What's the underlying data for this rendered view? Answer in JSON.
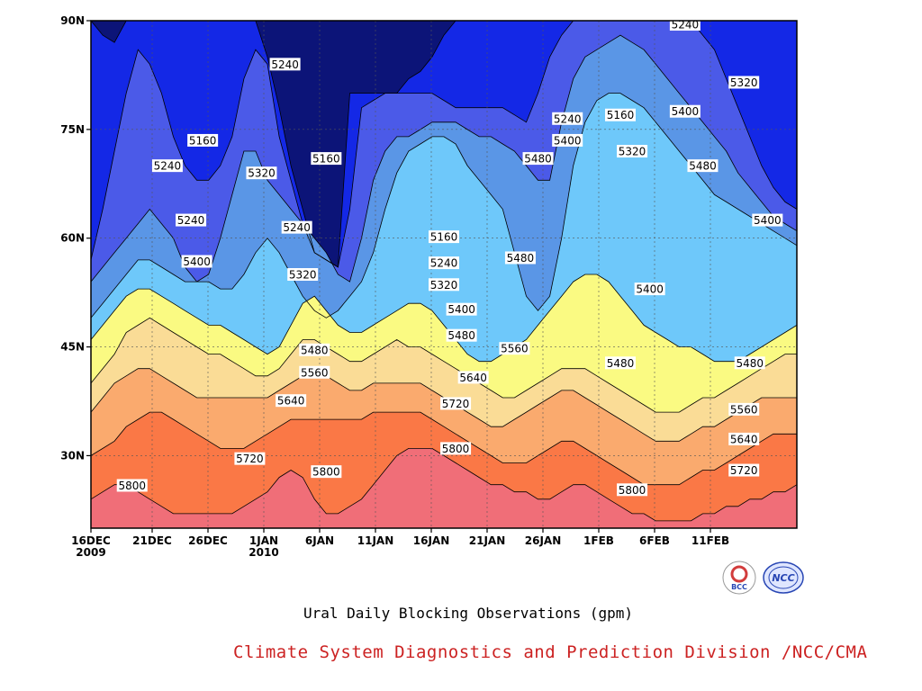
{
  "chart_data": {
    "type": "contour",
    "title": "",
    "caption": "Ural Daily Blocking Observations (gpm)",
    "credit": "Climate System Diagnostics and Prediction Division /NCC/CMA",
    "credit_color": "#cc2222",
    "ylim": [
      20,
      90
    ],
    "xlim_days": [
      0,
      60
    ],
    "grid": true,
    "y_ticks": [
      {
        "value": 30,
        "label": "30N"
      },
      {
        "value": 45,
        "label": "45N"
      },
      {
        "value": 60,
        "label": "60N"
      },
      {
        "value": 75,
        "label": "75N"
      },
      {
        "value": 90,
        "label": "90N"
      }
    ],
    "x_ticks": [
      {
        "label": "16DEC",
        "label2": "2009"
      },
      {
        "label": "21DEC",
        "label2": ""
      },
      {
        "label": "26DEC",
        "label2": ""
      },
      {
        "label": "1JAN",
        "label2": "2010"
      },
      {
        "label": "6JAN",
        "label2": ""
      },
      {
        "label": "11JAN",
        "label2": ""
      },
      {
        "label": "16JAN",
        "label2": ""
      },
      {
        "label": "21JAN",
        "label2": ""
      },
      {
        "label": "26JAN",
        "label2": ""
      },
      {
        "label": "1FEB",
        "label2": ""
      },
      {
        "label": "6FEB",
        "label2": ""
      },
      {
        "label": "11FEB",
        "label2": ""
      }
    ],
    "contour_levels": [
      5160,
      5240,
      5320,
      5400,
      5480,
      5560,
      5640,
      5720,
      5800
    ],
    "fill_colors": [
      "#0c1478",
      "#1428e6",
      "#4b5ae8",
      "#5a96e6",
      "#6ec8fa",
      "#fafa82",
      "#fadc96",
      "#faaa6e",
      "#fa7846",
      "#f06e78"
    ],
    "contour_boundaries": [
      {
        "level": 5160,
        "lat": [
          90,
          88,
          87,
          90,
          90,
          90,
          90,
          90,
          90,
          90,
          90,
          90,
          90,
          90,
          90,
          85,
          78,
          70,
          64,
          58,
          57,
          56,
          80,
          80,
          80,
          80,
          80,
          82,
          83,
          85,
          88,
          90,
          90,
          90,
          90,
          90,
          90,
          90,
          90,
          90,
          90,
          90,
          90,
          90,
          90,
          90,
          90,
          90,
          90,
          90,
          90,
          90,
          90,
          90,
          90,
          90,
          90,
          90,
          90,
          90,
          90
        ]
      },
      {
        "level": 5240,
        "lat": [
          57,
          64,
          72,
          80,
          86,
          84,
          80,
          74,
          70,
          68,
          68,
          70,
          74,
          82,
          86,
          84,
          74,
          68,
          62,
          58,
          57,
          56,
          64,
          78,
          79,
          80,
          80,
          80,
          80,
          80,
          79,
          78,
          78,
          78,
          78,
          78,
          77,
          76,
          80,
          85,
          88,
          90,
          90,
          90,
          90,
          90,
          90,
          90,
          90,
          90,
          90,
          90,
          88,
          86,
          82,
          78,
          74,
          70,
          67,
          65,
          64
        ]
      },
      {
        "level": 5320,
        "lat": [
          54,
          56,
          58,
          60,
          62,
          64,
          62,
          60,
          56,
          54,
          55,
          60,
          66,
          72,
          72,
          68,
          66,
          64,
          62,
          60,
          58,
          55,
          54,
          60,
          68,
          72,
          74,
          74,
          75,
          76,
          76,
          76,
          75,
          74,
          74,
          73,
          72,
          70,
          68,
          68,
          76,
          82,
          85,
          86,
          87,
          88,
          87,
          86,
          84,
          82,
          80,
          78,
          76,
          74,
          72,
          69,
          67,
          65,
          63,
          62,
          61
        ]
      },
      {
        "level": 5400,
        "lat": [
          49,
          51,
          53,
          55,
          57,
          57,
          56,
          55,
          54,
          54,
          54,
          53,
          53,
          55,
          58,
          60,
          58,
          55,
          52,
          50,
          49,
          50,
          52,
          54,
          58,
          64,
          69,
          72,
          73,
          74,
          74,
          73,
          70,
          68,
          66,
          64,
          58,
          52,
          50,
          52,
          60,
          70,
          76,
          79,
          80,
          80,
          79,
          78,
          76,
          74,
          72,
          70,
          68,
          66,
          65,
          64,
          63,
          62,
          61,
          60,
          59
        ]
      },
      {
        "level": 5480,
        "lat": [
          46,
          48,
          50,
          52,
          53,
          53,
          52,
          51,
          50,
          49,
          48,
          48,
          47,
          46,
          45,
          44,
          45,
          48,
          51,
          52,
          50,
          48,
          47,
          47,
          48,
          49,
          50,
          51,
          51,
          50,
          48,
          46,
          44,
          43,
          43,
          44,
          45,
          46,
          48,
          50,
          52,
          54,
          55,
          55,
          54,
          52,
          50,
          48,
          47,
          46,
          45,
          45,
          44,
          43,
          43,
          43,
          44,
          45,
          46,
          47,
          48
        ]
      },
      {
        "level": 5560,
        "lat": [
          40,
          42,
          44,
          47,
          48,
          49,
          48,
          47,
          46,
          45,
          44,
          44,
          43,
          42,
          41,
          41,
          42,
          44,
          46,
          46,
          45,
          44,
          43,
          43,
          44,
          45,
          46,
          45,
          45,
          44,
          43,
          42,
          41,
          40,
          39,
          38,
          38,
          39,
          40,
          41,
          42,
          42,
          42,
          41,
          40,
          39,
          38,
          37,
          36,
          36,
          36,
          37,
          38,
          38,
          39,
          40,
          41,
          42,
          43,
          44,
          44
        ]
      },
      {
        "level": 5640,
        "lat": [
          36,
          38,
          40,
          41,
          42,
          42,
          41,
          40,
          39,
          38,
          38,
          38,
          38,
          38,
          38,
          38,
          39,
          40,
          41,
          42,
          41,
          40,
          39,
          39,
          40,
          40,
          40,
          40,
          40,
          39,
          38,
          37,
          36,
          35,
          34,
          34,
          35,
          36,
          37,
          38,
          39,
          39,
          38,
          37,
          36,
          35,
          34,
          33,
          32,
          32,
          32,
          33,
          34,
          34,
          35,
          36,
          37,
          38,
          38,
          38,
          38
        ]
      },
      {
        "level": 5720,
        "lat": [
          30,
          31,
          32,
          34,
          35,
          36,
          36,
          35,
          34,
          33,
          32,
          31,
          31,
          31,
          32,
          33,
          34,
          35,
          35,
          35,
          35,
          35,
          35,
          35,
          36,
          36,
          36,
          36,
          36,
          35,
          34,
          33,
          32,
          31,
          30,
          29,
          29,
          29,
          30,
          31,
          32,
          32,
          31,
          30,
          29,
          28,
          27,
          26,
          26,
          26,
          26,
          27,
          28,
          28,
          29,
          30,
          31,
          32,
          33,
          33,
          33
        ]
      },
      {
        "level": 5800,
        "lat": [
          24,
          25,
          26,
          26,
          25,
          24,
          23,
          22,
          22,
          22,
          22,
          22,
          22,
          23,
          24,
          25,
          27,
          28,
          27,
          24,
          22,
          22,
          23,
          24,
          26,
          28,
          30,
          31,
          31,
          31,
          30,
          29,
          28,
          27,
          26,
          26,
          25,
          25,
          24,
          24,
          25,
          26,
          26,
          25,
          24,
          23,
          22,
          22,
          21,
          21,
          21,
          21,
          22,
          22,
          23,
          23,
          24,
          24,
          25,
          25,
          26
        ]
      }
    ],
    "contour_labels": [
      {
        "text": "5240",
        "day": 50.5,
        "lat": 89.5
      },
      {
        "text": "5320",
        "day": 55.5,
        "lat": 81.5
      },
      {
        "text": "5400",
        "day": 50.5,
        "lat": 77.5
      },
      {
        "text": "5240",
        "day": 16.5,
        "lat": 84.0
      },
      {
        "text": "5240",
        "day": 40.5,
        "lat": 76.5
      },
      {
        "text": "5160",
        "day": 45.0,
        "lat": 77.0
      },
      {
        "text": "5160",
        "day": 9.5,
        "lat": 73.5
      },
      {
        "text": "5400",
        "day": 40.5,
        "lat": 73.5
      },
      {
        "text": "5320",
        "day": 46.0,
        "lat": 72.0
      },
      {
        "text": "5240",
        "day": 6.5,
        "lat": 70.0
      },
      {
        "text": "5320",
        "day": 14.5,
        "lat": 69.0
      },
      {
        "text": "5160",
        "day": 20.0,
        "lat": 71.0
      },
      {
        "text": "5480",
        "day": 38.0,
        "lat": 71.0
      },
      {
        "text": "5480",
        "day": 52.0,
        "lat": 70.0
      },
      {
        "text": "5240",
        "day": 8.5,
        "lat": 62.5
      },
      {
        "text": "5240",
        "day": 17.5,
        "lat": 61.5
      },
      {
        "text": "5160",
        "day": 30.0,
        "lat": 60.2
      },
      {
        "text": "5400",
        "day": 57.5,
        "lat": 62.5
      },
      {
        "text": "5400",
        "day": 9.0,
        "lat": 56.8
      },
      {
        "text": "5480",
        "day": 36.5,
        "lat": 57.3
      },
      {
        "text": "5240",
        "day": 30.0,
        "lat": 56.6
      },
      {
        "text": "5320",
        "day": 18.0,
        "lat": 55.0
      },
      {
        "text": "5320",
        "day": 30.0,
        "lat": 53.6
      },
      {
        "text": "5400",
        "day": 47.5,
        "lat": 53.0
      },
      {
        "text": "5400",
        "day": 31.5,
        "lat": 50.2
      },
      {
        "text": "5480",
        "day": 31.5,
        "lat": 46.6
      },
      {
        "text": "5480",
        "day": 19.0,
        "lat": 44.6
      },
      {
        "text": "5560",
        "day": 36.0,
        "lat": 44.8
      },
      {
        "text": "5480",
        "day": 45.0,
        "lat": 42.8
      },
      {
        "text": "5480",
        "day": 56.0,
        "lat": 42.8
      },
      {
        "text": "5560",
        "day": 19.0,
        "lat": 41.5
      },
      {
        "text": "5640",
        "day": 32.5,
        "lat": 40.8
      },
      {
        "text": "5640",
        "day": 17.0,
        "lat": 37.6
      },
      {
        "text": "5720",
        "day": 31.0,
        "lat": 37.2
      },
      {
        "text": "5560",
        "day": 55.5,
        "lat": 36.4
      },
      {
        "text": "5640",
        "day": 55.5,
        "lat": 32.3
      },
      {
        "text": "5800",
        "day": 31.0,
        "lat": 31.0
      },
      {
        "text": "5720",
        "day": 13.5,
        "lat": 29.6
      },
      {
        "text": "5800",
        "day": 20.0,
        "lat": 27.8
      },
      {
        "text": "5720",
        "day": 55.5,
        "lat": 28.0
      },
      {
        "text": "5800",
        "day": 3.5,
        "lat": 25.9
      },
      {
        "text": "5800",
        "day": 46.0,
        "lat": 25.3
      }
    ]
  },
  "logos": {
    "bcc_text": "BCC",
    "ncc_text": "NCC",
    "bcc_color": "#d23c3c",
    "ncc_color": "#2846b4"
  }
}
